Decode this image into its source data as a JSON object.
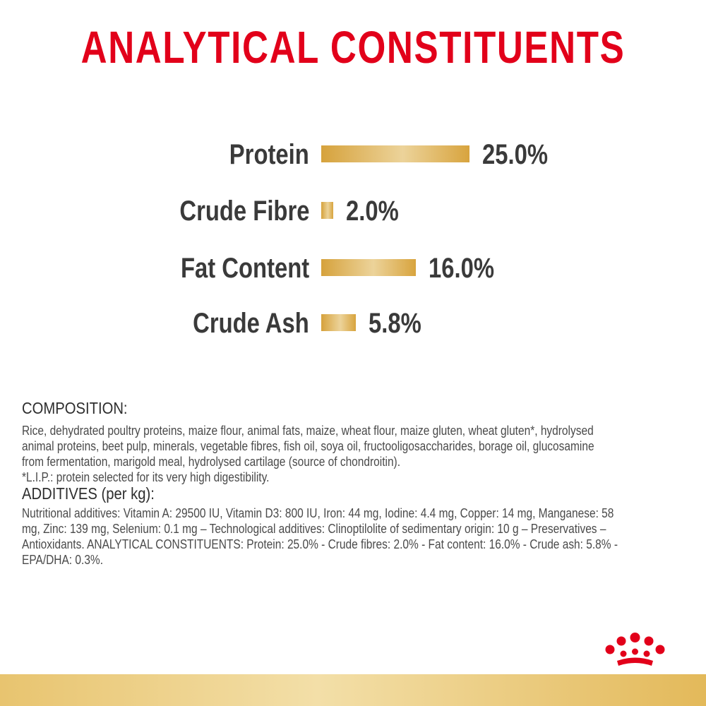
{
  "title": "ANALYTICAL CONSTITUENTS",
  "chart_data": {
    "type": "bar",
    "title": "ANALYTICAL CONSTITUENTS",
    "categories": [
      "Protein",
      "Crude Fibre",
      "Fat Content",
      "Crude Ash"
    ],
    "values": [
      25.0,
      2.0,
      16.0,
      5.8
    ],
    "value_labels": [
      "25.0%",
      "2.0%",
      "16.0%",
      "5.8%"
    ],
    "unit": "%",
    "orientation": "horizontal",
    "bar_color": "#dcae4e",
    "grid": false,
    "legend": "none"
  },
  "composition": {
    "heading": "COMPOSITION:",
    "lines": [
      "Rice, dehydrated poultry proteins, maize flour, animal fats, maize, wheat flour, maize gluten, wheat gluten*, hydrolysed",
      "animal proteins, beet pulp, minerals, vegetable fibres, fish oil, soya oil, fructooligosaccharides, borage oil, glucosamine",
      "from fermentation, marigold meal, hydrolysed cartilage (source of chondroitin).",
      "*L.I.P.: protein selected for its very high digestibility."
    ]
  },
  "additives": {
    "heading": "ADDITIVES (per kg):",
    "lines": [
      "Nutritional additives: Vitamin A: 29500 IU, Vitamin D3: 800 IU, Iron: 44 mg, Iodine: 4.4 mg, Copper: 14 mg, Manganese: 58",
      "mg, Zinc: 139 mg, Selenium: 0.1 mg – Technological additives: Clinoptilolite of sedimentary origin: 10 g – Preservatives –",
      "Antioxidants. ANALYTICAL CONSTITUENTS: Protein: 25.0% - Crude fibres: 2.0% - Fat content: 16.0% - Crude ash: 5.8% -",
      "EPA/DHA: 0.3%."
    ]
  },
  "colors": {
    "title": "#e2001a",
    "text": "#3a3a3a",
    "bar": "#dcae4e",
    "band": "#ecd08a",
    "logo": "#e2001a"
  },
  "icons": {
    "logo": "crown-logo"
  }
}
